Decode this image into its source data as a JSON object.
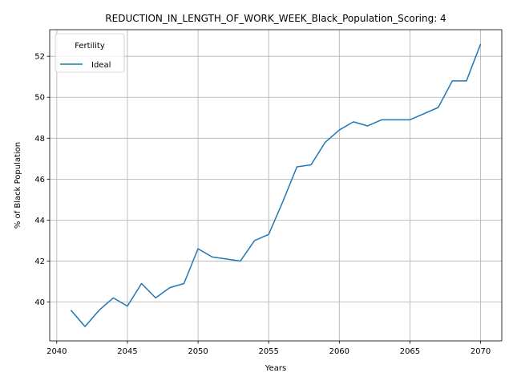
{
  "chart_data": {
    "type": "line",
    "title": "REDUCTION_IN_LENGTH_OF_WORK_WEEK_Black_Population_Scoring: 4",
    "xlabel": "Years",
    "ylabel": "% of Black Population",
    "xlim": [
      2039.5,
      2071.5
    ],
    "ylim": [
      38.1,
      53.3
    ],
    "xticks": [
      2040,
      2045,
      2050,
      2055,
      2060,
      2065,
      2070
    ],
    "yticks": [
      40,
      42,
      44,
      46,
      48,
      50,
      52
    ],
    "grid": true,
    "legend": {
      "title": "Fertility",
      "placement": "upper-left"
    },
    "series": [
      {
        "name": "Ideal",
        "color": "#1f77b4",
        "x": [
          2041,
          2042,
          2043,
          2044,
          2045,
          2046,
          2047,
          2048,
          2049,
          2050,
          2051,
          2052,
          2053,
          2054,
          2055,
          2056,
          2057,
          2058,
          2059,
          2060,
          2061,
          2062,
          2063,
          2064,
          2065,
          2066,
          2067,
          2068,
          2069,
          2070
        ],
        "y": [
          39.6,
          38.8,
          39.6,
          40.2,
          39.8,
          40.9,
          40.2,
          40.7,
          40.9,
          42.6,
          42.2,
          42.1,
          42.0,
          43.0,
          43.3,
          44.9,
          46.6,
          46.7,
          47.8,
          48.4,
          48.8,
          48.6,
          48.9,
          48.9,
          48.9,
          49.2,
          49.5,
          50.8,
          50.8,
          52.6
        ]
      }
    ]
  }
}
